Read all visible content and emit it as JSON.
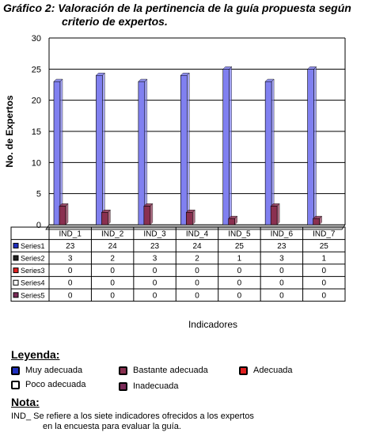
{
  "chart_data": {
    "type": "bar",
    "title_line1": "Gráfico 2: Valoración de la pertinencia de la guía propuesta según",
    "title_line2": "criterio de expertos.",
    "ylabel": "No. de Expertos",
    "xlabel": "Indicadores",
    "ylim": [
      0,
      30
    ],
    "yticks": [
      0,
      5,
      10,
      15,
      20,
      25,
      30
    ],
    "grid": true,
    "categories": [
      "IND_1",
      "IND_2",
      "IND_3",
      "IND_4",
      "IND_5",
      "IND_6",
      "IND_7"
    ],
    "series": [
      {
        "name": "Series1",
        "values": [
          23,
          24,
          23,
          24,
          25,
          23,
          25
        ],
        "color": "#8080f0",
        "marker": "#2030c0"
      },
      {
        "name": "Series2",
        "values": [
          3,
          2,
          3,
          2,
          1,
          3,
          1
        ],
        "color": "#8a3050",
        "marker": "#202020"
      },
      {
        "name": "Series3",
        "values": [
          0,
          0,
          0,
          0,
          0,
          0,
          0
        ],
        "color": "#ffffff",
        "marker": "#e02020"
      },
      {
        "name": "Series4",
        "values": [
          0,
          0,
          0,
          0,
          0,
          0,
          0
        ],
        "color": "#ffffff",
        "marker": "#ffffff"
      },
      {
        "name": "Series5",
        "values": [
          0,
          0,
          0,
          0,
          0,
          0,
          0
        ],
        "color": "#7a2a58",
        "marker": "#7a2a58"
      }
    ]
  },
  "legend": {
    "title": "Leyenda:",
    "items": [
      {
        "label": "Muy adecuada",
        "color": "#2030c0"
      },
      {
        "label": "Bastante adecuada",
        "color": "#8a3050"
      },
      {
        "label": "Adecuada",
        "color": "#e02020"
      },
      {
        "label": "Poco adecuada",
        "color": "#ffffff"
      },
      {
        "label": "Inadecuada",
        "color": "#7a2a58"
      }
    ]
  },
  "note": {
    "title": "Nota:",
    "line1": "IND_ Se refiere a los siete indicadores ofrecidos a los expertos",
    "line2": "en la encuesta para evaluar la guía."
  }
}
